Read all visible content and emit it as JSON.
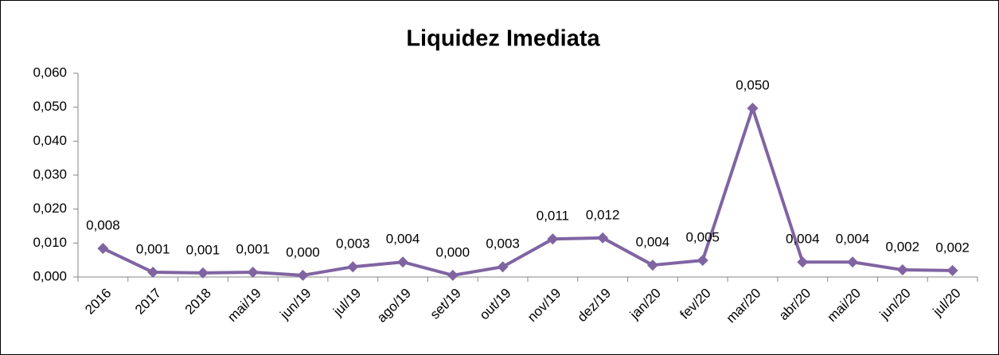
{
  "chart_data": {
    "type": "line",
    "title": "Liquidez Imediata",
    "categories": [
      "2016",
      "2017",
      "2018",
      "mai/19",
      "jun/19",
      "jul/19",
      "ago/19",
      "set/19",
      "out/19",
      "nov/19",
      "dez/19",
      "jan/20",
      "fev/20",
      "mar/20",
      "abr/20",
      "mai/20",
      "jun/20",
      "jul/20"
    ],
    "series": [
      {
        "name": "Liquidez Imediata",
        "color": "#8064a2",
        "values": [
          0.0084,
          0.0014,
          0.0012,
          0.0014,
          0.0005,
          0.003,
          0.0044,
          0.0005,
          0.003,
          0.0112,
          0.0115,
          0.0035,
          0.0049,
          0.0497,
          0.0044,
          0.0044,
          0.0021,
          0.0019
        ],
        "value_labels": [
          "0,008",
          "0,001",
          "0,001",
          "0,001",
          "0,000",
          "0,003",
          "0,004",
          "0,000",
          "0,003",
          "0,011",
          "0,012",
          "0,004",
          "0,005",
          "0,050",
          "0,004",
          "0,004",
          "0,002",
          "0,002"
        ]
      }
    ],
    "ylim": [
      0,
      0.06
    ],
    "yticks": [
      {
        "value": 0,
        "label": "0,000"
      },
      {
        "value": 0.01,
        "label": "0,010"
      },
      {
        "value": 0.02,
        "label": "0,020"
      },
      {
        "value": 0.03,
        "label": "0,030"
      },
      {
        "value": 0.04,
        "label": "0,040"
      },
      {
        "value": 0.05,
        "label": "0,050"
      },
      {
        "value": 0.06,
        "label": "0,060"
      }
    ],
    "grid": false
  }
}
